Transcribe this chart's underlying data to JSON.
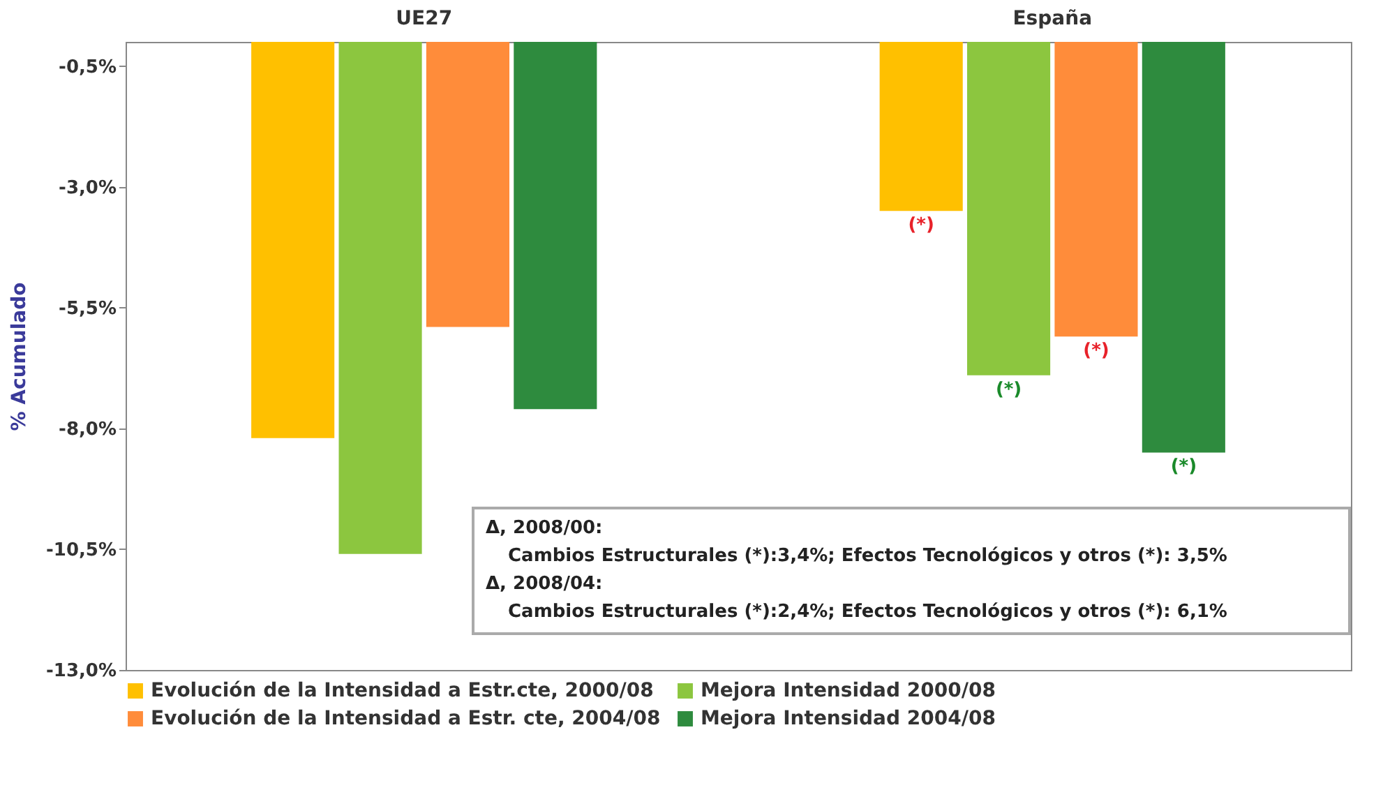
{
  "chart_data": {
    "type": "bar",
    "ylabel": "% Acumulado",
    "categories": [
      "UE27",
      "España"
    ],
    "series": [
      {
        "name": "Evolución de la Intensidad a Estr.cte, 2000/08",
        "color": "#ffc000",
        "values": [
          -8.2,
          -3.5
        ]
      },
      {
        "name": "Mejora Intensidad 2000/08",
        "color": "#8cc63f",
        "values": [
          -10.6,
          -6.9
        ]
      },
      {
        "name": "Evolución de la Intensidad a Estr. cte, 2004/08",
        "color": "#ff8c3a",
        "values": [
          -5.9,
          -6.1
        ]
      },
      {
        "name": "Mejora Intensidad 2004/08",
        "color": "#2e8b3e",
        "values": [
          -7.6,
          -8.5
        ]
      }
    ],
    "ylim": [
      -13,
      0
    ],
    "yticks": [
      {
        "value": -0.5,
        "label": "-0,5%"
      },
      {
        "value": -3,
        "label": "-3,0%"
      },
      {
        "value": -5.5,
        "label": "-5,5%"
      },
      {
        "value": -8,
        "label": "-8,0%"
      },
      {
        "value": -10.5,
        "label": "-10,5%"
      },
      {
        "value": -13,
        "label": "-13,0%"
      }
    ],
    "legend": "bottom",
    "annotations": [
      "(*)",
      "(*)",
      "(*)",
      "(*)",
      "Δ, 2008/00:",
      "Cambios Estructurales (*):3,4%; Efectos Tecnológicos y otros (*): 3,5%",
      "Δ, 2008/04:",
      "Cambios Estructurales (*):2,4%;  Efectos Tecnológicos y otros (*): 6,1%"
    ]
  }
}
